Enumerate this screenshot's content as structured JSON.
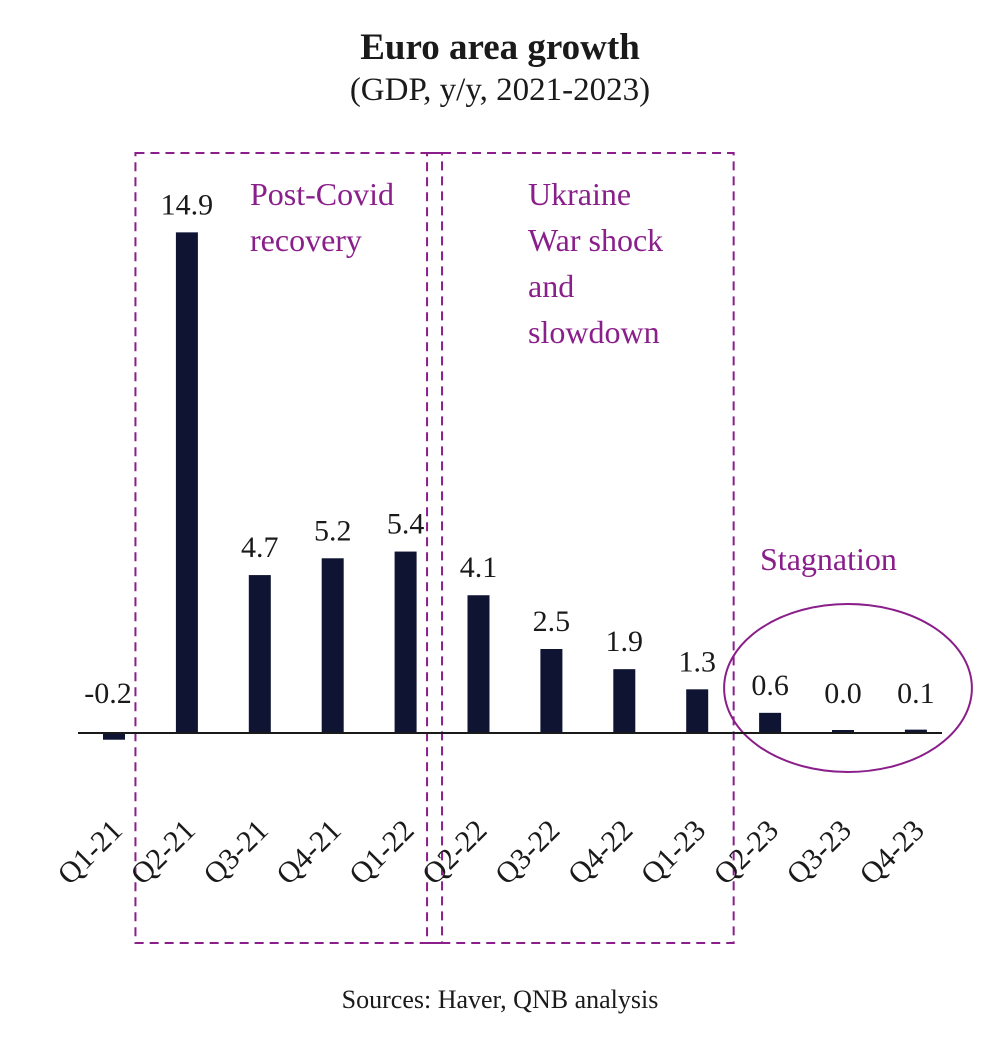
{
  "colors": {
    "bar": "#0f1433",
    "annotation": "#8a1e8a",
    "axis": "#1a1a1a",
    "text": "#1a1a1a"
  },
  "chart_data": {
    "type": "bar",
    "title": "Euro area growth",
    "subtitle": "(GDP, y/y, 2021-2023)",
    "xlabel": "",
    "ylabel": "",
    "ylim": [
      -0.5,
      16
    ],
    "categories": [
      "Q1-21",
      "Q2-21",
      "Q3-21",
      "Q4-21",
      "Q1-22",
      "Q2-22",
      "Q3-22",
      "Q4-22",
      "Q1-23",
      "Q2-23",
      "Q3-23",
      "Q4-23"
    ],
    "values": [
      -0.2,
      14.9,
      4.7,
      5.2,
      5.4,
      4.1,
      2.5,
      1.9,
      1.3,
      0.6,
      0.0,
      0.1
    ],
    "value_labels": [
      "-0.2",
      "14.9",
      "4.7",
      "5.2",
      "5.4",
      "4.1",
      "2.5",
      "1.9",
      "1.3",
      "0.6",
      "0.0",
      "0.1"
    ],
    "annotations": [
      {
        "id": "post-covid",
        "lines": [
          "Post-Covid",
          "recovery"
        ],
        "shape": "dashed-box",
        "spans": [
          "Q2-21",
          "Q1-22"
        ]
      },
      {
        "id": "ukraine",
        "lines": [
          "Ukraine",
          "War shock",
          "and",
          "slowdown"
        ],
        "shape": "dashed-box",
        "spans": [
          "Q2-22",
          "Q1-23"
        ]
      },
      {
        "id": "stagnation",
        "lines": [
          "Stagnation"
        ],
        "shape": "ellipse",
        "spans": [
          "Q2-23",
          "Q4-23"
        ]
      }
    ],
    "source": "Sources: Haver, QNB analysis"
  }
}
